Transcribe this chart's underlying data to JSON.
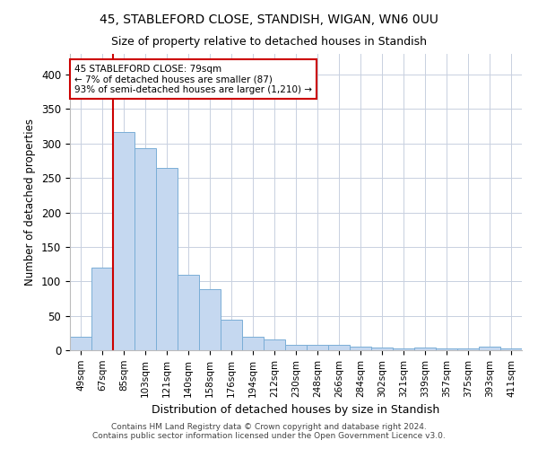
{
  "title1": "45, STABLEFORD CLOSE, STANDISH, WIGAN, WN6 0UU",
  "title2": "Size of property relative to detached houses in Standish",
  "xlabel": "Distribution of detached houses by size in Standish",
  "ylabel": "Number of detached properties",
  "footer1": "Contains HM Land Registry data © Crown copyright and database right 2024.",
  "footer2": "Contains public sector information licensed under the Open Government Licence v3.0.",
  "categories": [
    "49sqm",
    "67sqm",
    "85sqm",
    "103sqm",
    "121sqm",
    "140sqm",
    "158sqm",
    "176sqm",
    "194sqm",
    "212sqm",
    "230sqm",
    "248sqm",
    "266sqm",
    "284sqm",
    "302sqm",
    "321sqm",
    "339sqm",
    "357sqm",
    "375sqm",
    "393sqm",
    "411sqm"
  ],
  "values": [
    19,
    120,
    317,
    293,
    265,
    110,
    88,
    44,
    20,
    16,
    8,
    8,
    8,
    5,
    4,
    2,
    4,
    2,
    2,
    5,
    2
  ],
  "bar_color": "#c5d8f0",
  "bar_edge_color": "#7aaed6",
  "vline_x": 1.5,
  "vline_color": "#cc0000",
  "annotation_line1": "45 STABLEFORD CLOSE: 79sqm",
  "annotation_line2": "← 7% of detached houses are smaller (87)",
  "annotation_line3": "93% of semi-detached houses are larger (1,210) →",
  "annotation_box_color": "#cc0000",
  "background_color": "#ffffff",
  "grid_color": "#c8d0e0",
  "ylim": [
    0,
    430
  ],
  "yticks": [
    0,
    50,
    100,
    150,
    200,
    250,
    300,
    350,
    400
  ]
}
